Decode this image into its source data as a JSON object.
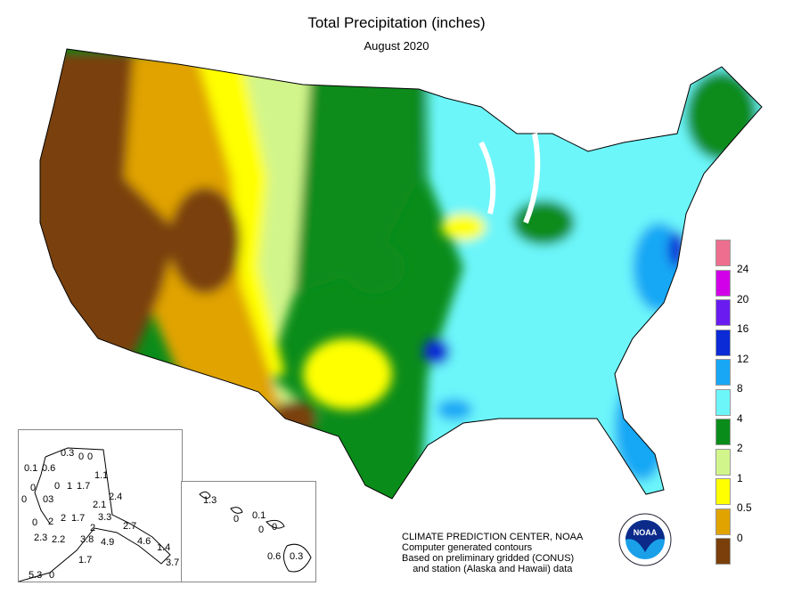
{
  "header": {
    "title": "Total Precipitation (inches)",
    "subtitle": "August 2020"
  },
  "legend": {
    "labels": [
      "24",
      "20",
      "16",
      "12",
      "8",
      "4",
      "2",
      "1",
      "0.5",
      "0"
    ],
    "colors": [
      "#ee6e8f",
      "#d100e8",
      "#6a1cf0",
      "#0a2bd6",
      "#18a7f5",
      "#6cf6fa",
      "#0a8c1a",
      "#d2f58b",
      "#ffff00",
      "#e0a300",
      "#7a3f0a"
    ]
  },
  "alaska": {
    "labels": [
      "0.3",
      "0",
      "0",
      "0.1",
      "0.6",
      "1.1",
      "0",
      "0",
      "1",
      "1.7",
      "0",
      "03",
      "2.4",
      "2.1",
      "0",
      "2",
      "2",
      "1.7",
      "3.3",
      "2",
      "2.7",
      "2.3",
      "2.2",
      "3.8",
      "4.9",
      "4.6",
      "1.4",
      "1.7",
      "3.7",
      "5.3",
      "0"
    ]
  },
  "hawaii": {
    "labels": [
      "1.3",
      "0",
      "0.1",
      "0",
      "0",
      "0.6",
      "0.3"
    ]
  },
  "credit": {
    "lines": [
      "CLIMATE PREDICTION CENTER, NOAA",
      "Computer generated contours",
      "Based on preliminary gridded (CONUS)",
      "    and station (Alaska and Hawaii) data"
    ]
  },
  "logo": {
    "text": "NOAA"
  }
}
